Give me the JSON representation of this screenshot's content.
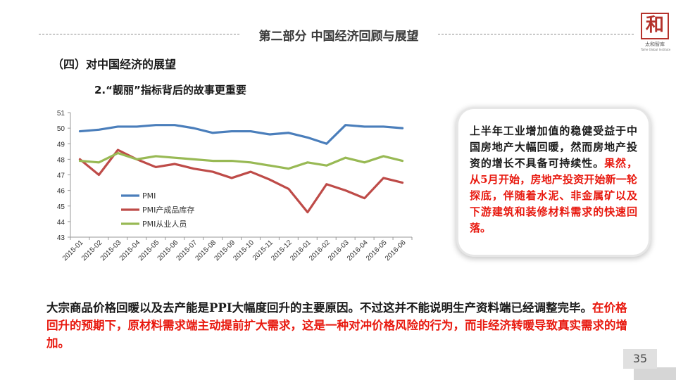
{
  "header": {
    "section_title": "第二部分 中国经济回顾与展望",
    "logo": {
      "char": "和",
      "cn": "太和智库",
      "en": "Taihe Global Institute"
    }
  },
  "subheading": "（四）对中国经济的展望",
  "chart_heading": "2.“靓丽”指标背后的故事更重要",
  "chart_data": {
    "type": "line",
    "categories": [
      "2015-01",
      "2015-02",
      "2015-03",
      "2015-04",
      "2015-05",
      "2015-06",
      "2015-07",
      "2015-08",
      "2015-09",
      "2015-10",
      "2015-11",
      "2015-12",
      "2016-01",
      "2016-02",
      "2016-03",
      "2016-04",
      "2016-05",
      "2016-06"
    ],
    "ylim": [
      43,
      51
    ],
    "yticks": [
      43,
      44,
      45,
      46,
      47,
      48,
      49,
      50,
      51
    ],
    "grid": false,
    "legend_position": "lower-left",
    "series": [
      {
        "name": "PMI",
        "color": "#4a7ebb",
        "values": [
          49.8,
          49.9,
          50.1,
          50.1,
          50.2,
          50.2,
          50.0,
          49.7,
          49.8,
          49.8,
          49.6,
          49.7,
          49.4,
          49.0,
          50.2,
          50.1,
          50.1,
          50.0
        ]
      },
      {
        "name": "PMI产成品库存",
        "color": "#be4b48",
        "values": [
          48.0,
          47.0,
          48.6,
          48.0,
          47.5,
          47.7,
          47.4,
          47.2,
          46.8,
          47.2,
          46.7,
          46.1,
          44.6,
          46.4,
          46.0,
          45.5,
          46.8,
          46.5
        ]
      },
      {
        "name": "PMI从业人员",
        "color": "#98b954",
        "values": [
          47.9,
          47.8,
          48.4,
          48.0,
          48.2,
          48.1,
          48.0,
          47.9,
          47.9,
          47.8,
          47.6,
          47.4,
          47.8,
          47.6,
          48.1,
          47.8,
          48.2,
          47.9
        ]
      }
    ]
  },
  "callout": {
    "black_text": "上半年工业增加值的稳健受益于中国房地产大幅回暖，然而房地产投资的增长不具备可持续性。",
    "red_text": "果然，从5月开始，房地产投资开始新一轮探底，伴随着水泥、非金属矿以及下游建筑和装修材料需求的快速回落。"
  },
  "bottom": {
    "black_text": "大宗商品价格回暖以及去产能是PPI大幅度回升的主要原因。不过这并不能说明生产资料端已经调整完毕。",
    "red_text": "在价格回升的预期下，原材料需求端主动提前扩大需求，这是一种对冲价格风险的行为，而非经济转暖导致真实需求的增加。"
  },
  "page_number": "35"
}
